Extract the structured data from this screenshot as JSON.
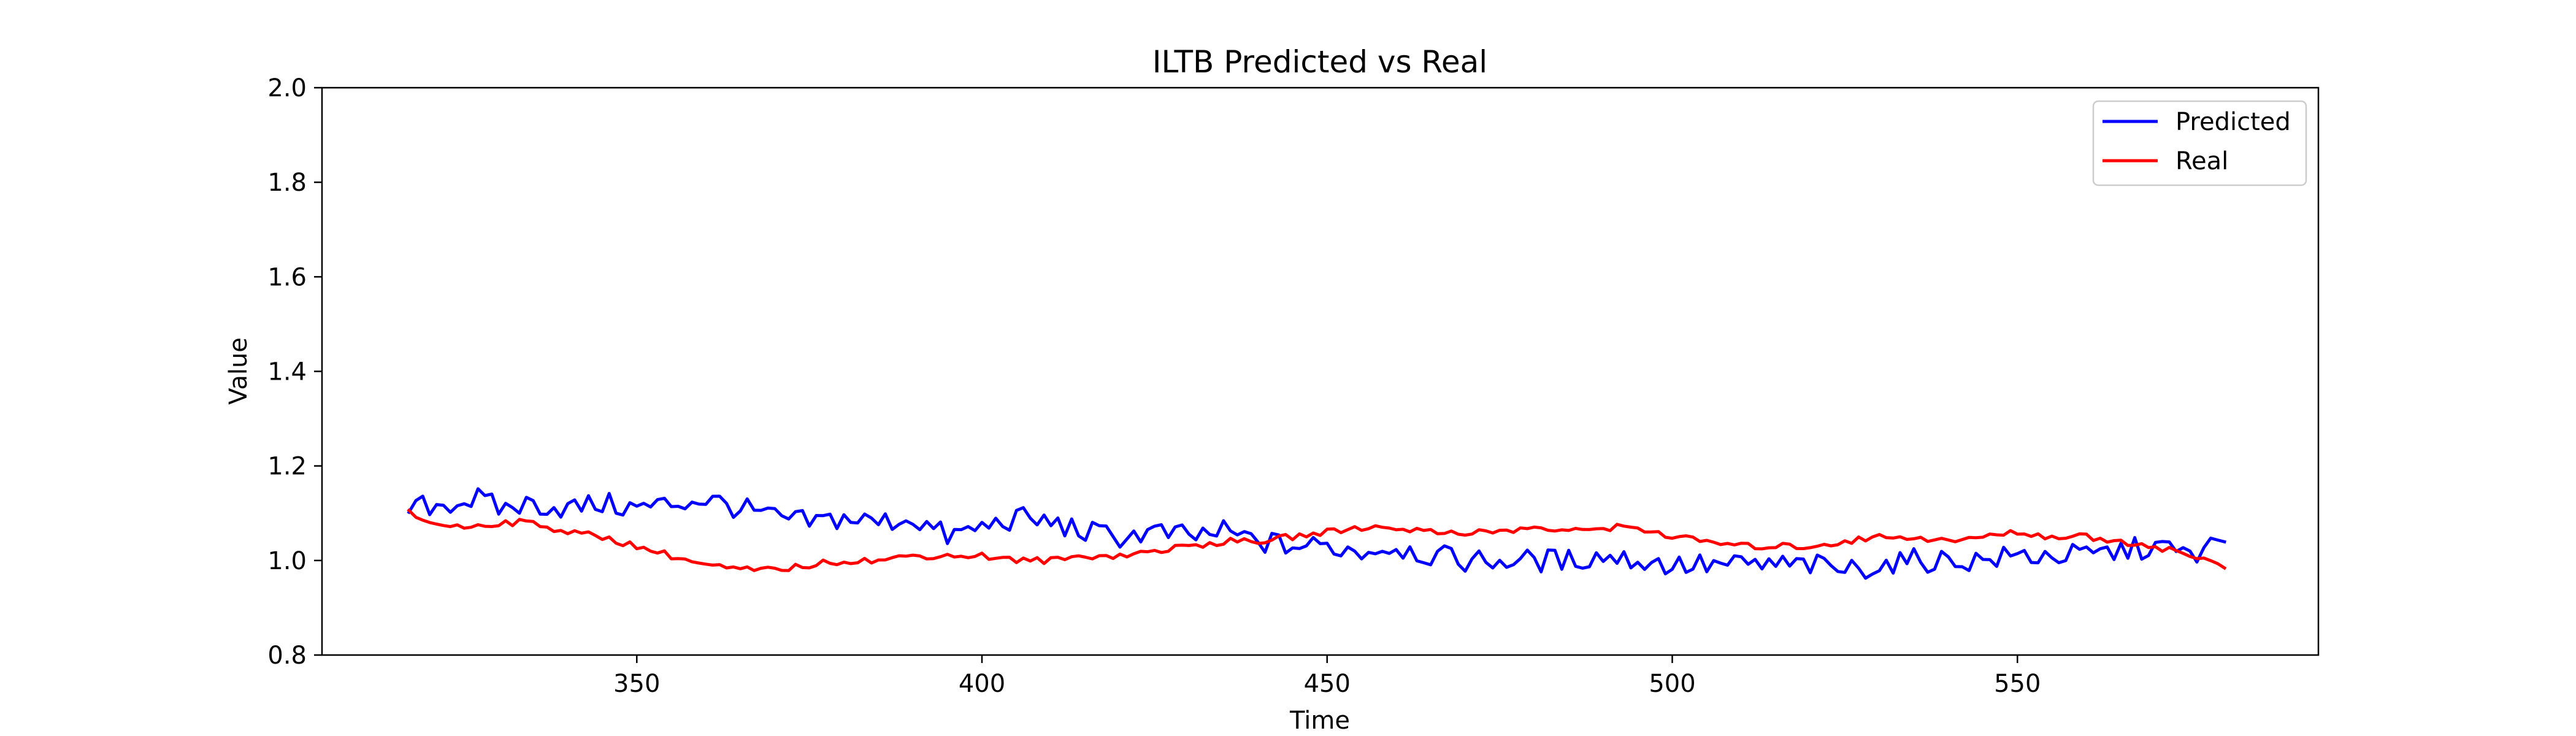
{
  "chart_data": {
    "type": "line",
    "title": "ILTB Predicted vs Real",
    "xlabel": "Time",
    "ylabel": "Value",
    "xlim": [
      304.4,
      593.6
    ],
    "ylim": [
      0.8,
      2.0
    ],
    "xticks": [
      350,
      400,
      450,
      500,
      550
    ],
    "yticks": [
      0.8,
      1.0,
      1.2,
      1.4,
      1.6,
      1.8,
      2.0
    ],
    "xtick_labels": [
      "350",
      "400",
      "450",
      "500",
      "550"
    ],
    "ytick_labels": [
      "0.8",
      "1.0",
      "1.2",
      "1.4",
      "1.6",
      "1.8",
      "2.0"
    ],
    "grid": false,
    "legend_position": "top-right",
    "x_start": 317,
    "x_end": 580,
    "series": [
      {
        "name": "Predicted",
        "color": "#0000ff",
        "points": [
          [
            317,
            1.11
          ],
          [
            322,
            1.12
          ],
          [
            327,
            1.13
          ],
          [
            330,
            1.11
          ],
          [
            335,
            1.12
          ],
          [
            340,
            1.11
          ],
          [
            345,
            1.12
          ],
          [
            350,
            1.11
          ],
          [
            355,
            1.12
          ],
          [
            360,
            1.13
          ],
          [
            365,
            1.11
          ],
          [
            370,
            1.09
          ],
          [
            375,
            1.08
          ],
          [
            380,
            1.09
          ],
          [
            385,
            1.08
          ],
          [
            390,
            1.09
          ],
          [
            395,
            1.05
          ],
          [
            400,
            1.07
          ],
          [
            405,
            1.09
          ],
          [
            410,
            1.08
          ],
          [
            415,
            1.06
          ],
          [
            420,
            1.05
          ],
          [
            425,
            1.06
          ],
          [
            430,
            1.05
          ],
          [
            435,
            1.06
          ],
          [
            440,
            1.04
          ],
          [
            445,
            1.03
          ],
          [
            450,
            1.03
          ],
          [
            455,
            1.02
          ],
          [
            460,
            1.03
          ],
          [
            465,
            1.01
          ],
          [
            470,
            1.0
          ],
          [
            475,
            1.0
          ],
          [
            480,
            1.0
          ],
          [
            485,
            1.0
          ],
          [
            490,
            1.01
          ],
          [
            495,
            1.0
          ],
          [
            500,
            0.99
          ],
          [
            505,
            0.99
          ],
          [
            510,
            0.99
          ],
          [
            515,
            0.99
          ],
          [
            520,
            0.99
          ],
          [
            525,
            0.98
          ],
          [
            530,
            0.99
          ],
          [
            535,
            1.0
          ],
          [
            540,
            1.0
          ],
          [
            545,
            1.0
          ],
          [
            550,
            1.01
          ],
          [
            555,
            1.01
          ],
          [
            560,
            1.01
          ],
          [
            565,
            1.02
          ],
          [
            570,
            1.03
          ],
          [
            575,
            1.01
          ],
          [
            580,
            1.04
          ]
        ]
      },
      {
        "name": "Real",
        "color": "#ff0000",
        "points": [
          [
            317,
            1.1
          ],
          [
            320,
            1.08
          ],
          [
            325,
            1.07
          ],
          [
            330,
            1.08
          ],
          [
            335,
            1.08
          ],
          [
            340,
            1.06
          ],
          [
            345,
            1.05
          ],
          [
            350,
            1.03
          ],
          [
            355,
            1.01
          ],
          [
            360,
            0.99
          ],
          [
            365,
            0.98
          ],
          [
            370,
            0.98
          ],
          [
            375,
            0.99
          ],
          [
            380,
            1.0
          ],
          [
            385,
            1.0
          ],
          [
            390,
            1.01
          ],
          [
            395,
            1.01
          ],
          [
            400,
            1.01
          ],
          [
            405,
            1.0
          ],
          [
            410,
            1.0
          ],
          [
            415,
            1.01
          ],
          [
            420,
            1.01
          ],
          [
            425,
            1.02
          ],
          [
            430,
            1.03
          ],
          [
            435,
            1.04
          ],
          [
            440,
            1.04
          ],
          [
            445,
            1.05
          ],
          [
            450,
            1.06
          ],
          [
            455,
            1.07
          ],
          [
            460,
            1.07
          ],
          [
            465,
            1.06
          ],
          [
            470,
            1.06
          ],
          [
            475,
            1.06
          ],
          [
            480,
            1.07
          ],
          [
            485,
            1.06
          ],
          [
            490,
            1.07
          ],
          [
            495,
            1.07
          ],
          [
            500,
            1.05
          ],
          [
            505,
            1.04
          ],
          [
            510,
            1.03
          ],
          [
            515,
            1.03
          ],
          [
            520,
            1.03
          ],
          [
            525,
            1.04
          ],
          [
            530,
            1.05
          ],
          [
            535,
            1.05
          ],
          [
            540,
            1.04
          ],
          [
            545,
            1.05
          ],
          [
            550,
            1.06
          ],
          [
            555,
            1.05
          ],
          [
            560,
            1.05
          ],
          [
            565,
            1.04
          ],
          [
            570,
            1.03
          ],
          [
            575,
            1.01
          ],
          [
            580,
            0.99
          ]
        ]
      }
    ]
  }
}
